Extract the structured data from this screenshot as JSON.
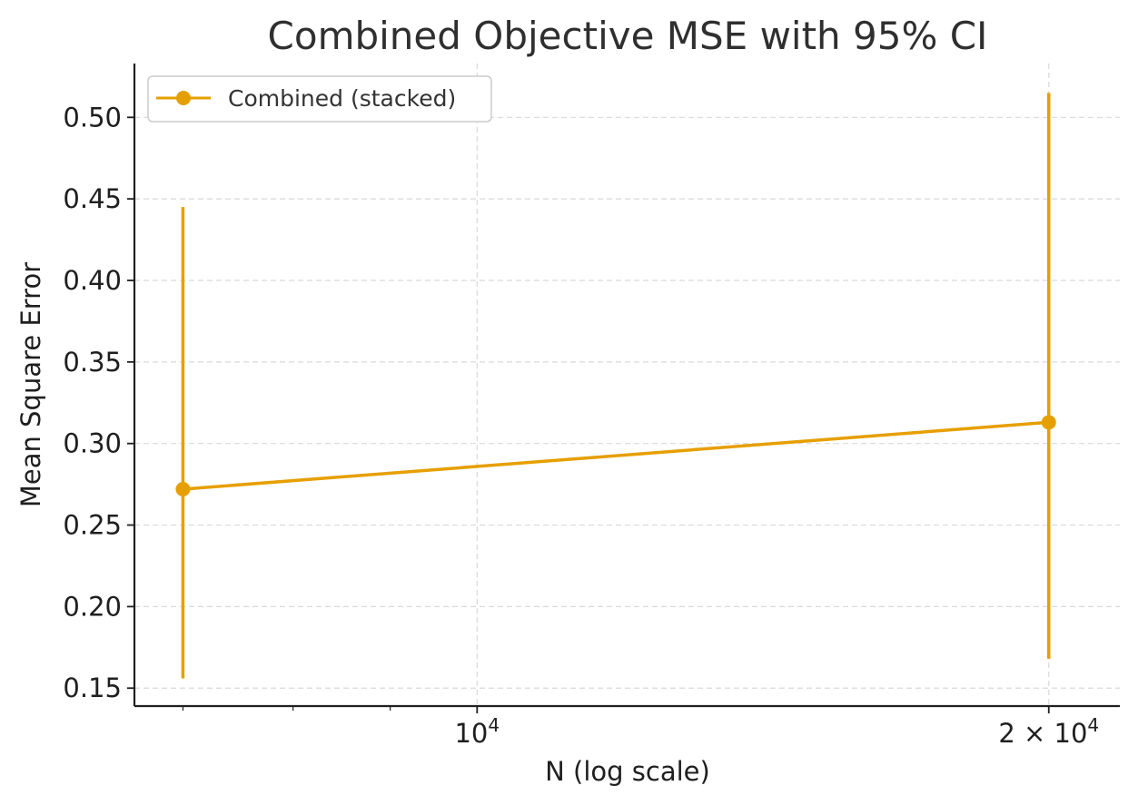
{
  "chart_data": {
    "type": "line",
    "title": "Combined Objective MSE with 95% CI",
    "xlabel": "N (log scale)",
    "ylabel": "Mean Square Error",
    "x_scale": "log",
    "xlim": [
      6600,
      21800
    ],
    "ylim": [
      0.139,
      0.533
    ],
    "x_ticks": [
      {
        "value": 10000,
        "base": "10",
        "exp": "4",
        "coef": ""
      },
      {
        "value": 20000,
        "base": "10",
        "exp": "4",
        "coef": "2 × "
      }
    ],
    "x_minor_ticks": [
      7000,
      8000,
      9000
    ],
    "y_ticks": [
      {
        "value": 0.15,
        "label": "0.15"
      },
      {
        "value": 0.2,
        "label": "0.20"
      },
      {
        "value": 0.25,
        "label": "0.25"
      },
      {
        "value": 0.3,
        "label": "0.30"
      },
      {
        "value": 0.35,
        "label": "0.35"
      },
      {
        "value": 0.4,
        "label": "0.40"
      },
      {
        "value": 0.45,
        "label": "0.45"
      },
      {
        "value": 0.5,
        "label": "0.50"
      }
    ],
    "grid": true,
    "legend_position": "top-left",
    "series": [
      {
        "name": "Combined (stacked)",
        "color": "#e69f00",
        "points": [
          {
            "x": 7000,
            "y": 0.272,
            "ci_low": 0.156,
            "ci_high": 0.445
          },
          {
            "x": 20000,
            "y": 0.313,
            "ci_low": 0.168,
            "ci_high": 0.515
          }
        ]
      }
    ]
  }
}
